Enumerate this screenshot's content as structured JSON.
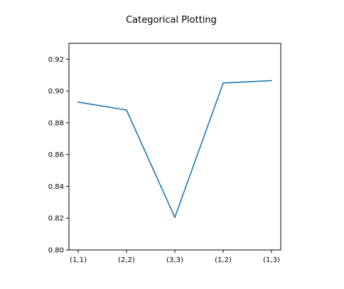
{
  "chart_data": {
    "type": "line",
    "title": "Categorical Plotting",
    "xlabel": "",
    "ylabel": "",
    "categories": [
      "(1,1)",
      "(2,2)",
      "(3,3)",
      "(1,2)",
      "(1,3)"
    ],
    "series": [
      {
        "values": [
          0.893,
          0.888,
          0.8205,
          0.905,
          0.9065
        ],
        "color": "#1f77b4"
      }
    ],
    "ylim": [
      0.8,
      0.93
    ],
    "yticks": [
      0.8,
      0.82,
      0.84,
      0.86,
      0.88,
      0.9,
      0.92
    ],
    "ytick_labels": [
      "0.80",
      "0.82",
      "0.84",
      "0.86",
      "0.88",
      "0.90",
      "0.92"
    ],
    "grid": false,
    "legend": "none"
  }
}
